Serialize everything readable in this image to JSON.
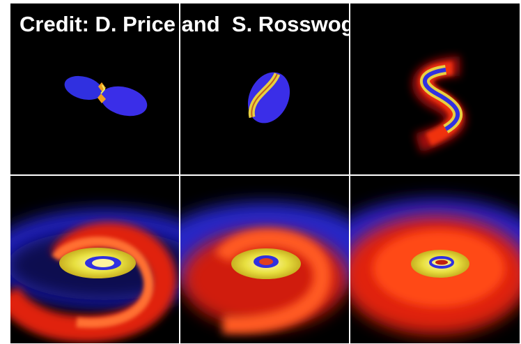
{
  "credit": "Credit: D. Price and  S. Rosswog"
}
